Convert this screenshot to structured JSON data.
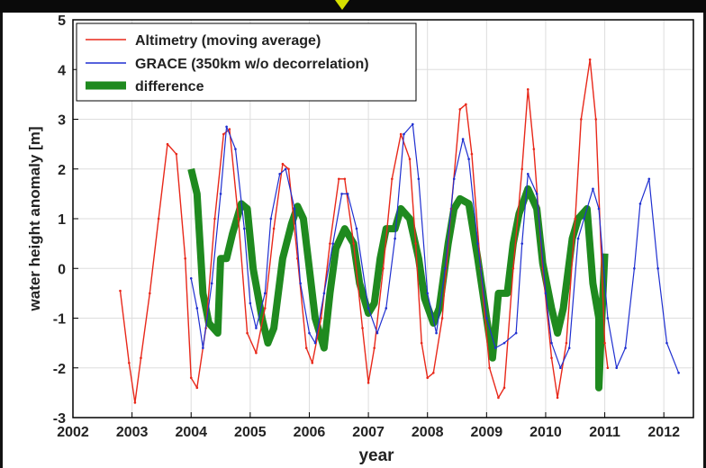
{
  "chart_data": {
    "type": "line",
    "xlabel": "year",
    "ylabel": "water height anomaly [m]",
    "xlim": [
      2002,
      2012.5
    ],
    "ylim": [
      -3,
      5
    ],
    "x_ticks": [
      "2002",
      "2003",
      "2004",
      "2005",
      "2006",
      "2007",
      "2008",
      "2009",
      "2010",
      "2011",
      "2012"
    ],
    "y_ticks": [
      "-3",
      "-2",
      "-1",
      "0",
      "1",
      "2",
      "3",
      "4",
      "5"
    ],
    "grid": true,
    "legend_position": "top-left",
    "series": [
      {
        "name": "Altimetry (moving average)",
        "color": "#e8281a",
        "x": [
          2002.8,
          2002.95,
          2003.05,
          2003.15,
          2003.3,
          2003.45,
          2003.6,
          2003.75,
          2003.9,
          2004.0,
          2004.1,
          2004.25,
          2004.4,
          2004.55,
          2004.65,
          2004.8,
          2004.95,
          2005.1,
          2005.25,
          2005.4,
          2005.55,
          2005.65,
          2005.8,
          2005.95,
          2006.05,
          2006.2,
          2006.35,
          2006.5,
          2006.6,
          2006.75,
          2006.9,
          2007.0,
          2007.1,
          2007.25,
          2007.4,
          2007.55,
          2007.7,
          2007.8,
          2007.9,
          2008.0,
          2008.1,
          2008.25,
          2008.4,
          2008.55,
          2008.65,
          2008.75,
          2008.9,
          2009.05,
          2009.2,
          2009.3,
          2009.45,
          2009.6,
          2009.7,
          2009.8,
          2009.95,
          2010.1,
          2010.2,
          2010.35,
          2010.5,
          2010.6,
          2010.75,
          2010.85,
          2011.0,
          2011.05
        ],
        "y": [
          -0.45,
          -1.9,
          -2.7,
          -1.8,
          -0.5,
          1.0,
          2.5,
          2.3,
          0.2,
          -2.2,
          -2.4,
          -1.2,
          1.0,
          2.7,
          2.8,
          1.0,
          -1.3,
          -1.7,
          -0.8,
          0.8,
          2.1,
          2.0,
          0.2,
          -1.6,
          -1.9,
          -1.0,
          0.5,
          1.8,
          1.8,
          0.5,
          -1.2,
          -2.3,
          -1.6,
          0.0,
          1.8,
          2.7,
          2.2,
          0.5,
          -1.5,
          -2.2,
          -2.1,
          -1.0,
          1.2,
          3.2,
          3.3,
          2.3,
          0.0,
          -2.0,
          -2.6,
          -2.4,
          0.0,
          2.0,
          3.6,
          2.4,
          0.0,
          -1.8,
          -2.6,
          -1.5,
          1.0,
          3.0,
          4.2,
          3.0,
          -1.5,
          -2.0
        ]
      },
      {
        "name": "GRACE (350km w/o decorrelation)",
        "color": "#1f2fd0",
        "x": [
          2004.0,
          2004.1,
          2004.2,
          2004.35,
          2004.5,
          2004.6,
          2004.75,
          2004.9,
          2005.0,
          2005.1,
          2005.25,
          2005.35,
          2005.5,
          2005.6,
          2005.75,
          2005.85,
          2006.0,
          2006.1,
          2006.25,
          2006.4,
          2006.55,
          2006.65,
          2006.8,
          2007.0,
          2007.15,
          2007.3,
          2007.45,
          2007.6,
          2007.75,
          2007.85,
          2008.0,
          2008.15,
          2008.3,
          2008.45,
          2008.6,
          2008.7,
          2008.85,
          2009.0,
          2009.15,
          2009.3,
          2009.5,
          2009.6,
          2009.7,
          2009.85,
          2010.0,
          2010.1,
          2010.25,
          2010.4,
          2010.55,
          2010.65,
          2010.8,
          2010.9,
          2011.05,
          2011.2,
          2011.35,
          2011.5,
          2011.6,
          2011.75,
          2011.9,
          2012.05,
          2012.25
        ],
        "y": [
          -0.2,
          -0.8,
          -1.6,
          -0.3,
          1.5,
          2.85,
          2.4,
          0.8,
          -0.7,
          -1.2,
          -0.5,
          1.0,
          1.9,
          2.0,
          1.2,
          -0.3,
          -1.3,
          -1.5,
          -0.5,
          0.5,
          1.5,
          1.5,
          0.8,
          -0.8,
          -1.3,
          -0.8,
          0.6,
          2.7,
          2.9,
          1.8,
          -0.5,
          -1.3,
          0.0,
          1.8,
          2.6,
          2.2,
          0.5,
          -1.0,
          -1.6,
          -1.5,
          -1.3,
          0.5,
          1.9,
          1.5,
          -0.5,
          -1.5,
          -2.0,
          -1.6,
          0.6,
          1.0,
          1.6,
          1.2,
          -1.0,
          -2.0,
          -1.6,
          0.0,
          1.3,
          1.8,
          0.0,
          -1.5,
          -2.1
        ]
      },
      {
        "name": "difference",
        "color": "#1f8a1f",
        "x": [
          2004.0,
          2004.1,
          2004.2,
          2004.3,
          2004.45,
          2004.5,
          2004.6,
          2004.7,
          2004.85,
          2004.95,
          2005.05,
          2005.2,
          2005.3,
          2005.4,
          2005.55,
          2005.7,
          2005.8,
          2005.9,
          2006.0,
          2006.1,
          2006.25,
          2006.35,
          2006.45,
          2006.6,
          2006.75,
          2006.85,
          2007.0,
          2007.1,
          2007.2,
          2007.3,
          2007.45,
          2007.55,
          2007.7,
          2007.85,
          2007.95,
          2008.1,
          2008.2,
          2008.35,
          2008.45,
          2008.55,
          2008.7,
          2008.85,
          2009.0,
          2009.1,
          2009.2,
          2009.35,
          2009.45,
          2009.55,
          2009.7,
          2009.85,
          2009.95,
          2010.1,
          2010.2,
          2010.3,
          2010.45,
          2010.55,
          2010.7,
          2010.8,
          2010.9
        ],
        "y": [
          2.0,
          1.5,
          -0.5,
          -1.1,
          -1.3,
          0.2,
          0.2,
          0.7,
          1.3,
          1.2,
          0.0,
          -1.0,
          -1.5,
          -1.2,
          0.2,
          0.9,
          1.25,
          1.0,
          0.0,
          -1.0,
          -1.6,
          -0.5,
          0.4,
          0.8,
          0.5,
          -0.3,
          -0.9,
          -0.7,
          0.2,
          0.8,
          0.8,
          1.2,
          1.0,
          0.2,
          -0.6,
          -1.1,
          -0.8,
          0.5,
          1.2,
          1.4,
          1.3,
          0.2,
          -1.0,
          -1.8,
          -0.5,
          -0.5,
          0.5,
          1.1,
          1.6,
          1.2,
          0.1,
          -0.8,
          -1.3,
          -0.8,
          0.6,
          1.0,
          1.2,
          -0.3,
          -1.0
        ]
      }
    ],
    "difference_tail": {
      "x": [
        2010.9,
        2010.95,
        2011.0
      ],
      "y": [
        -2.4,
        -1.0,
        0.3
      ]
    }
  }
}
